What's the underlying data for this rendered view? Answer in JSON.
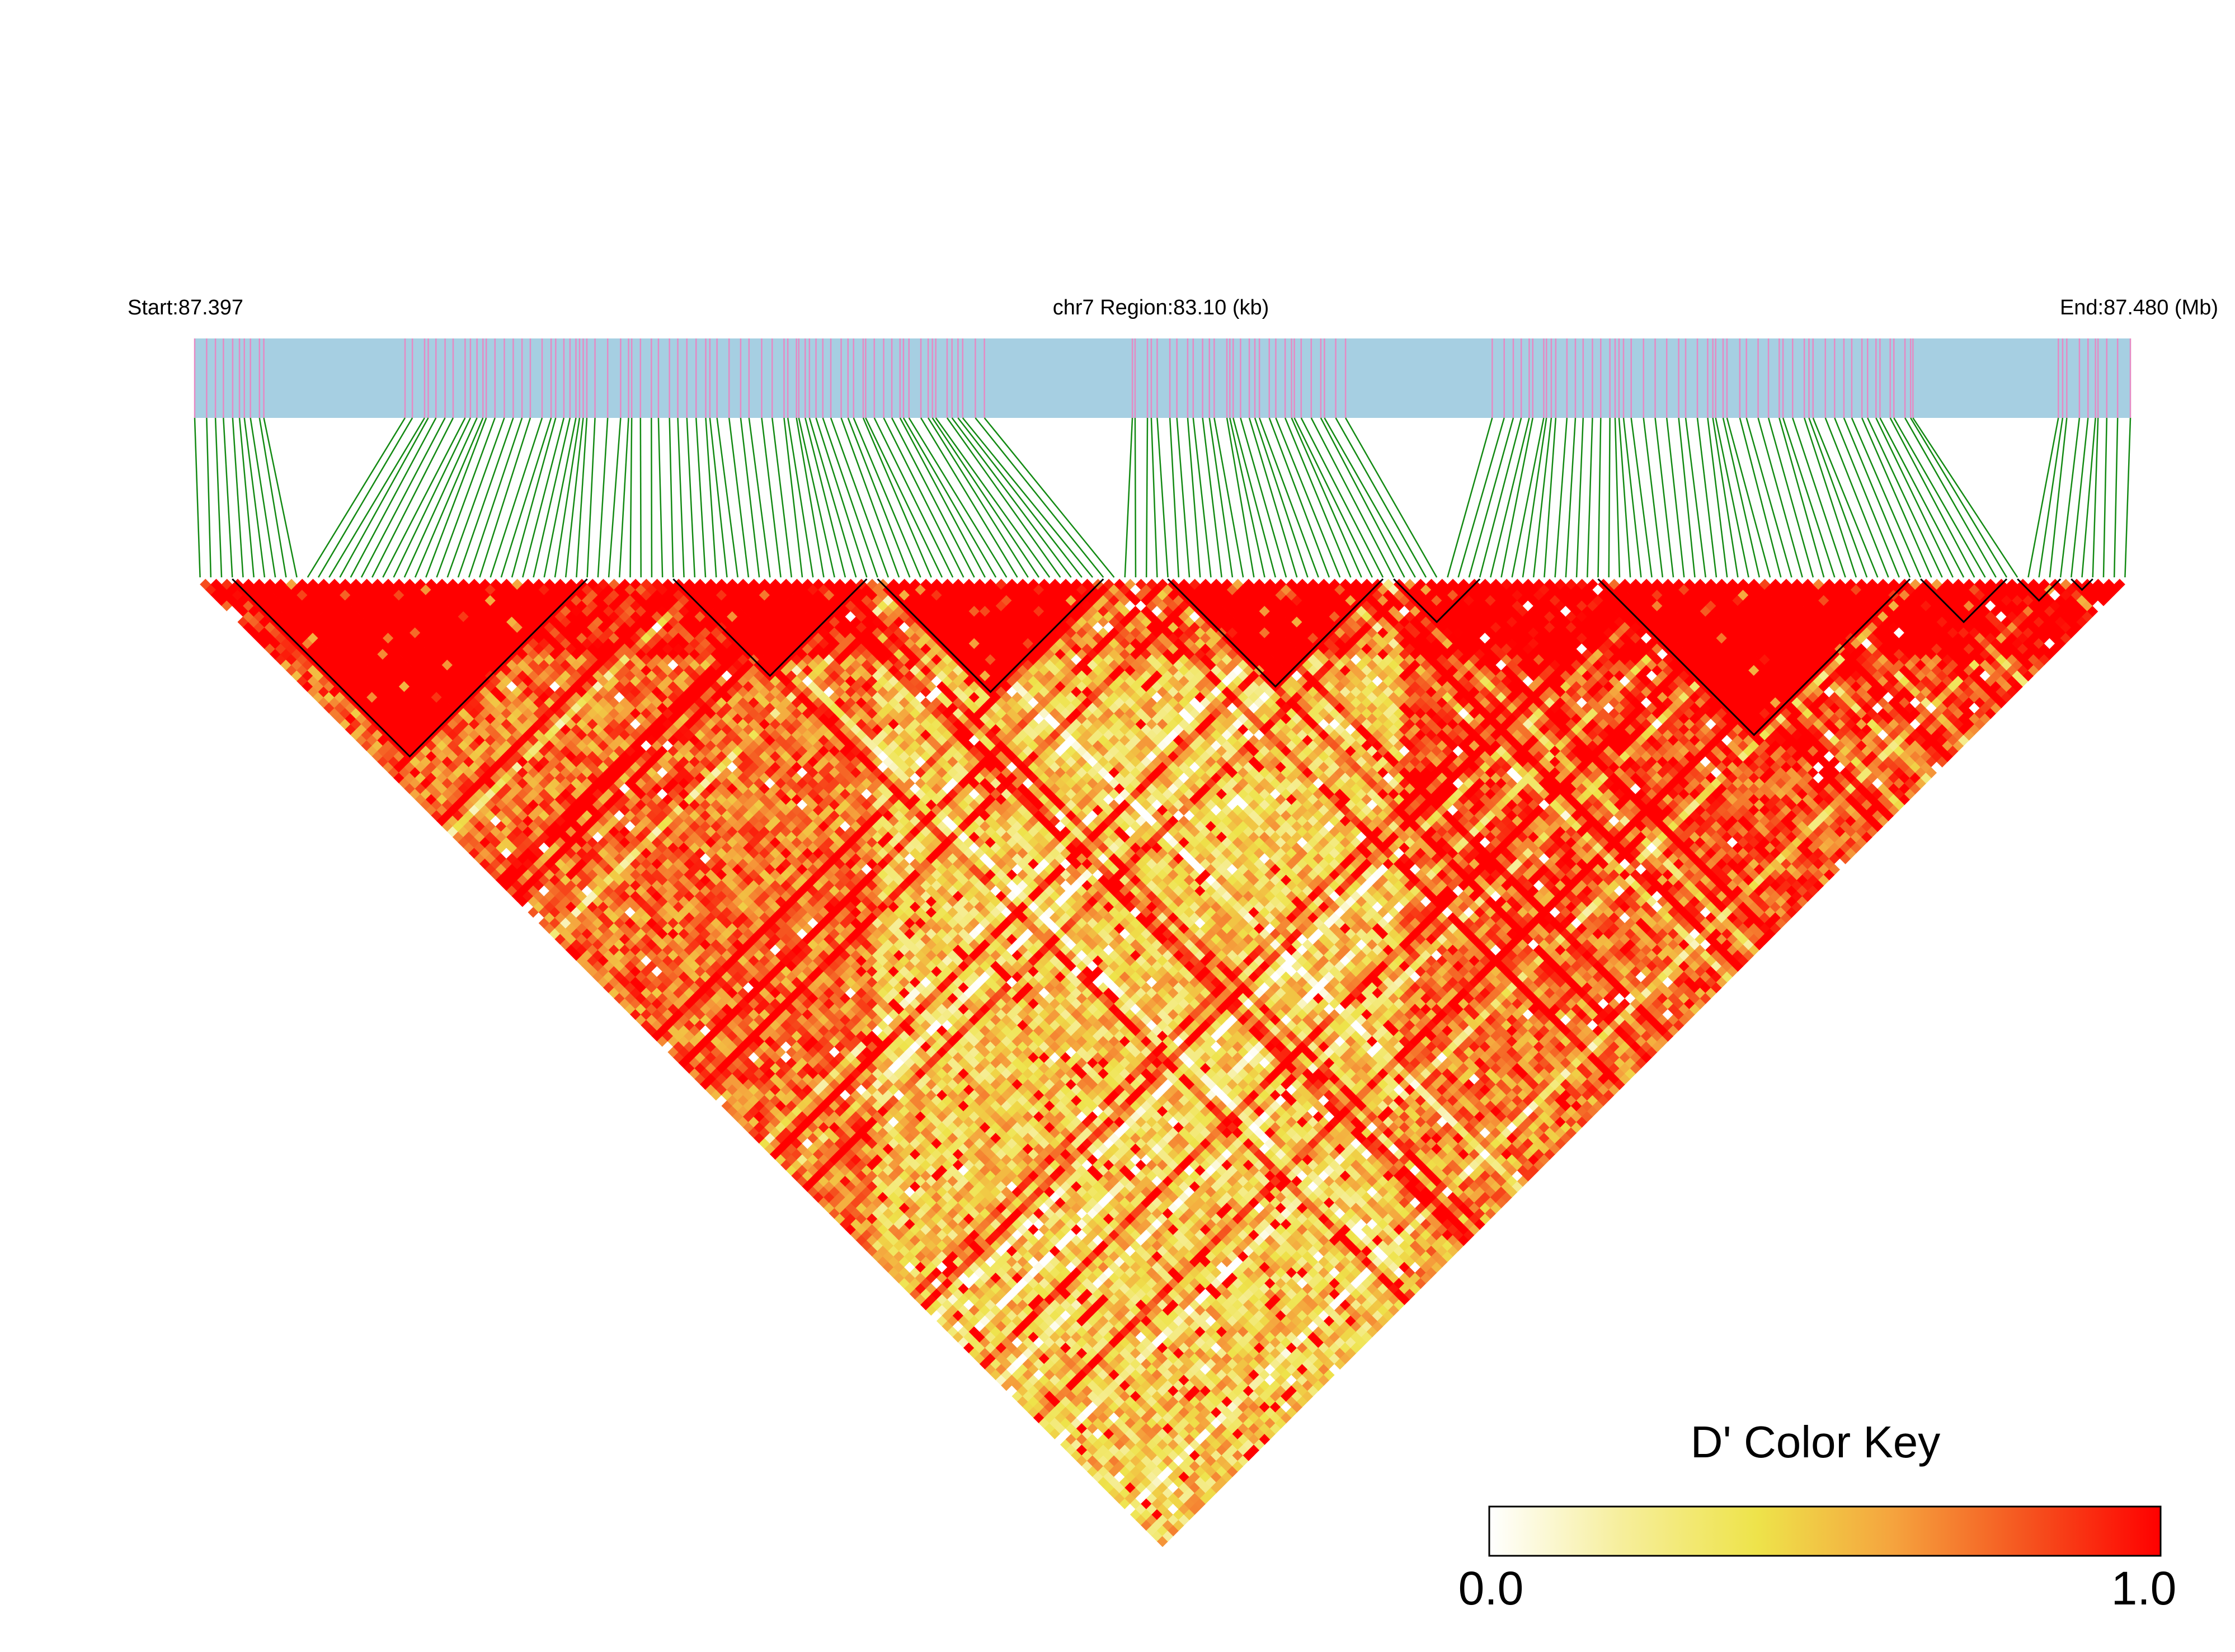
{
  "header": {
    "start_label": "Start:87.397",
    "region_label": "chr7 Region:83.10 (kb)",
    "end_label": "End:87.480 (Mb)"
  },
  "legend": {
    "title": "D' Color Key",
    "min_label": "0.0",
    "max_label": "1.0",
    "colors": [
      "#ffffff",
      "#f6ee9a",
      "#eee34a",
      "#f5a43e",
      "#f5541f",
      "#ff0000"
    ]
  },
  "colors": {
    "track_fill": "#a6cfe2",
    "snp_tick": "#e58ac4",
    "connector": "#138a13",
    "ld_high": "#ff0000",
    "block_outline": "#000000"
  },
  "chart_data": {
    "type": "heatmap",
    "title": "",
    "chromosome": "chr7",
    "region_start_mb": 87.397,
    "region_end_mb": 87.48,
    "region_length_kb": 83.1,
    "metric": "D'",
    "value_range": [
      0.0,
      1.0
    ],
    "snp_count": 180,
    "haplotype_blocks_snp_index": [
      [
        3,
        36
      ],
      [
        44,
        62
      ],
      [
        63,
        84
      ],
      [
        90,
        110
      ],
      [
        111,
        119
      ],
      [
        130,
        159
      ],
      [
        160,
        168
      ],
      [
        169,
        173
      ],
      [
        174,
        176
      ]
    ],
    "background_ld_profile": {
      "description": "Mean D' by region of the triangular matrix",
      "left_lower_region": 0.72,
      "central_band": 0.45,
      "right_lower_region": 0.9
    }
  }
}
